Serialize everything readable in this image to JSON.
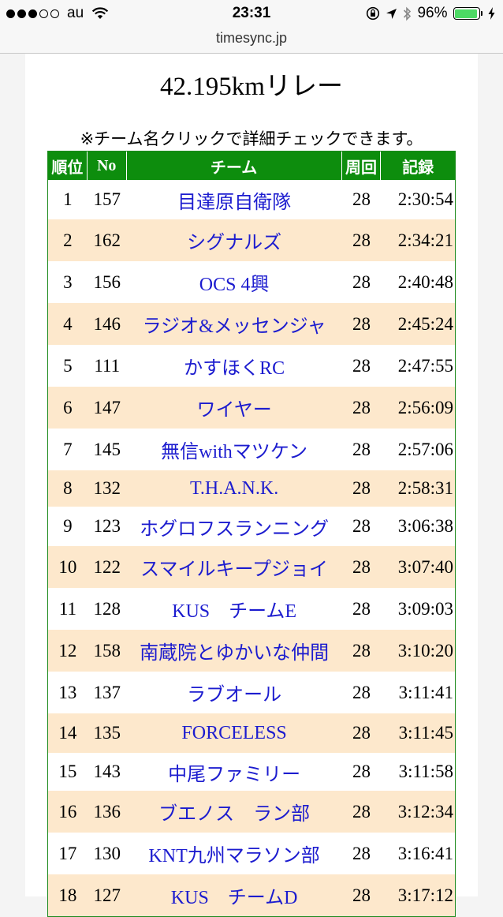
{
  "status": {
    "carrier": "au",
    "time": "23:31",
    "battery": "96%",
    "battery_level": 0.96
  },
  "url": "timesync.jp",
  "page": {
    "title": "42.195kmリレー",
    "note": "※チーム名クリックで詳細チェックできます。"
  },
  "table": {
    "headers": {
      "rank": "順位",
      "no": "No",
      "team": "チーム",
      "laps": "周回",
      "time": "記録"
    },
    "rows": [
      {
        "rank": "1",
        "no": "157",
        "team": "目達原自衛隊",
        "laps": "28",
        "time": "2:30:54"
      },
      {
        "rank": "2",
        "no": "162",
        "team": "シグナルズ",
        "laps": "28",
        "time": "2:34:21"
      },
      {
        "rank": "3",
        "no": "156",
        "team": "OCS 4興",
        "laps": "28",
        "time": "2:40:48"
      },
      {
        "rank": "4",
        "no": "146",
        "team": "ラジオ&メッセンジャ",
        "laps": "28",
        "time": "2:45:24"
      },
      {
        "rank": "5",
        "no": "111",
        "team": "かすほくRC",
        "laps": "28",
        "time": "2:47:55"
      },
      {
        "rank": "6",
        "no": "147",
        "team": "ワイヤー",
        "laps": "28",
        "time": "2:56:09"
      },
      {
        "rank": "7",
        "no": "145",
        "team": "無信withマツケン",
        "laps": "28",
        "time": "2:57:06"
      },
      {
        "rank": "8",
        "no": "132",
        "team": "T.H.A.N.K.",
        "laps": "28",
        "time": "2:58:31"
      },
      {
        "rank": "9",
        "no": "123",
        "team": "ホグロフスランニング",
        "laps": "28",
        "time": "3:06:38"
      },
      {
        "rank": "10",
        "no": "122",
        "team": "スマイルキープジョイ",
        "laps": "28",
        "time": "3:07:40"
      },
      {
        "rank": "11",
        "no": "128",
        "team": "KUS　チームE",
        "laps": "28",
        "time": "3:09:03"
      },
      {
        "rank": "12",
        "no": "158",
        "team": "南蔵院とゆかいな仲間",
        "laps": "28",
        "time": "3:10:20"
      },
      {
        "rank": "13",
        "no": "137",
        "team": "ラブオール",
        "laps": "28",
        "time": "3:11:41"
      },
      {
        "rank": "14",
        "no": "135",
        "team": "FORCELESS",
        "laps": "28",
        "time": "3:11:45"
      },
      {
        "rank": "15",
        "no": "143",
        "team": "中尾ファミリー",
        "laps": "28",
        "time": "3:11:58"
      },
      {
        "rank": "16",
        "no": "136",
        "team": "ブエノス　ラン部",
        "laps": "28",
        "time": "3:12:34"
      },
      {
        "rank": "17",
        "no": "130",
        "team": "KNT九州マラソン部",
        "laps": "28",
        "time": "3:16:41"
      },
      {
        "rank": "18",
        "no": "127",
        "team": "KUS　チームD",
        "laps": "28",
        "time": "3:17:12"
      }
    ]
  },
  "colors": {
    "header_bg": "#0d8d0d",
    "alt_row_bg": "#fde8cc",
    "link": "#1c1ccf"
  }
}
